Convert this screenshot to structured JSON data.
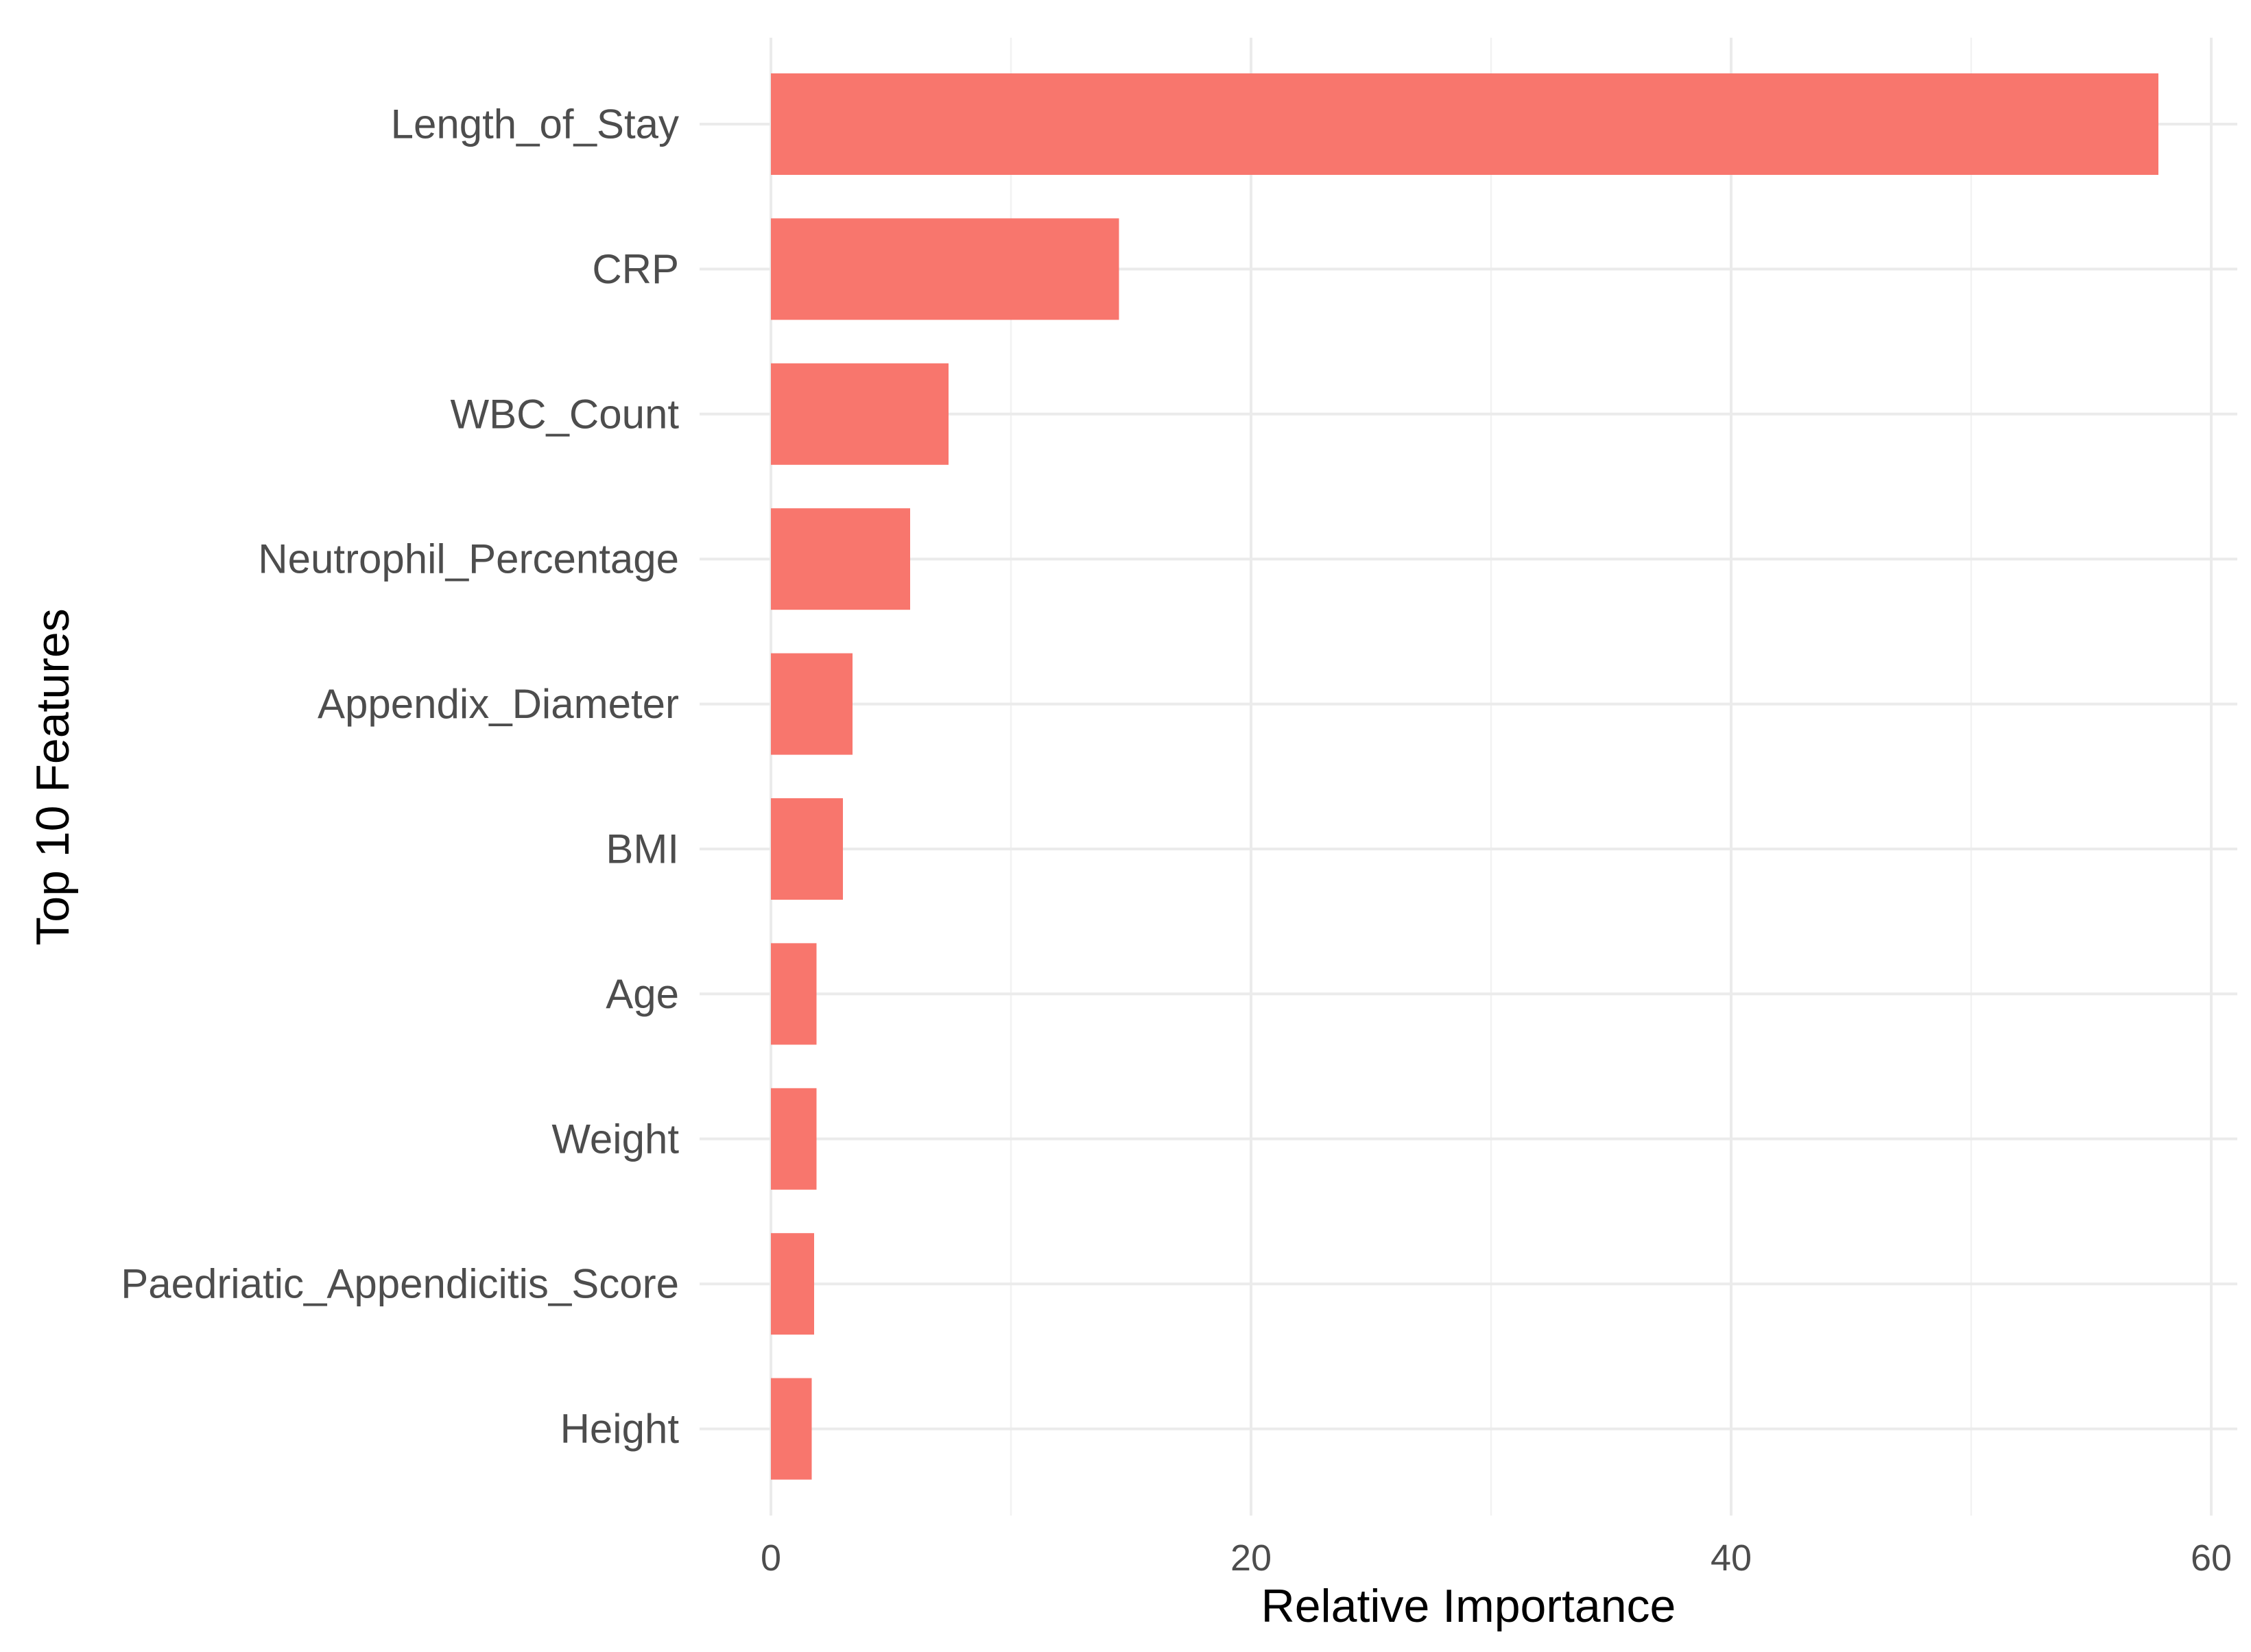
{
  "chart_data": {
    "type": "bar",
    "orientation": "horizontal",
    "categories": [
      "Length_of_Stay",
      "CRP",
      "WBC_Count",
      "Neutrophil_Percentage",
      "Appendix_Diameter",
      "BMI",
      "Age",
      "Weight",
      "Paedriatic_Appendicitis_Score",
      "Height"
    ],
    "values": [
      57.8,
      14.5,
      7.4,
      5.8,
      3.4,
      3.0,
      1.9,
      1.9,
      1.8,
      1.7
    ],
    "xlabel": "Relative Importance",
    "ylabel": "Top 10 Features",
    "xlim": [
      0,
      60
    ],
    "xticks": [
      0,
      20,
      40,
      60
    ],
    "grid": true,
    "bar_color": "#F8766D"
  }
}
